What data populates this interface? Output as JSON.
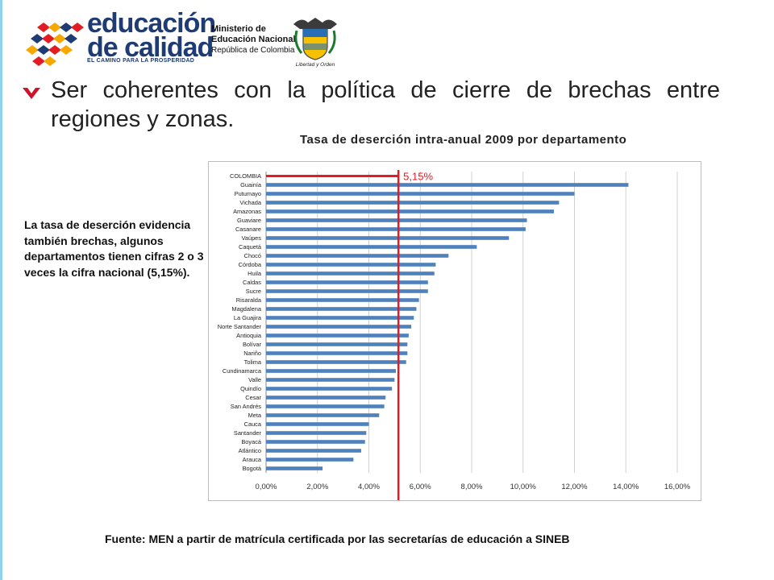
{
  "header": {
    "logo_title_line1": "educación",
    "logo_title_line2": "de calidad",
    "logo_tagline": "EL CAMINO PARA LA PROSPERIDAD",
    "ministry_line1": "Ministerio de",
    "ministry_line2": "Educación Nacional",
    "ministry_line3": "República de Colombia",
    "motto": "Libertad y Orden"
  },
  "headline": "Ser coherentes con la política de cierre de brechas entre regiones y zonas.",
  "side_note": "La tasa de deserción evidencia también brechas, algunos departamentos tienen cifras 2 o 3 veces la cifra nacional (5,15%).",
  "source": "Fuente: MEN a partir de matrícula certificada por las secretarías de educación a SINEB",
  "colors": {
    "bar": "#4f81bd",
    "reference": "#e31b23",
    "grid": "#d0d0d0",
    "brand_blue": "#1f3b73",
    "bullet_red": "#d0112b"
  },
  "chart_data": {
    "type": "bar",
    "orientation": "horizontal",
    "title": "Tasa de deserción intra-anual 2009 por departamento",
    "xlabel": "",
    "ylabel": "",
    "xlim": [
      0,
      16
    ],
    "x_ticks": [
      0,
      2,
      4,
      6,
      8,
      10,
      12,
      14,
      16
    ],
    "x_tick_labels": [
      "0,00%",
      "2,00%",
      "4,00%",
      "6,00%",
      "8,00%",
      "10,00%",
      "12,00%",
      "14,00%",
      "16,00%"
    ],
    "grid": true,
    "reference_line": {
      "value": 5.15,
      "label": "5,15%",
      "category": "COLOMBIA"
    },
    "categories": [
      "COLOMBIA",
      "Guainía",
      "Putumayo",
      "Vichada",
      "Amazonas",
      "Guaviare",
      "Casanare",
      "Vaúpes",
      "Caquetá",
      "Chocó",
      "Córdoba",
      "Huila",
      "Caldas",
      "Sucre",
      "Risaralda",
      "Magdalena",
      "La Guajira",
      "Norte Santander",
      "Antioquia",
      "Bolívar",
      "Nariño",
      "Tolima",
      "Cundinamarca",
      "Valle",
      "Quindío",
      "Cesar",
      "San Andrés",
      "Meta",
      "Cauca",
      "Santander",
      "Boyacá",
      "Atlántico",
      "Arauca",
      "Bogotá"
    ],
    "values": [
      5.15,
      14.1,
      12.0,
      11.4,
      11.2,
      10.15,
      10.1,
      9.45,
      8.2,
      7.1,
      6.6,
      6.55,
      6.3,
      6.3,
      5.95,
      5.85,
      5.75,
      5.65,
      5.55,
      5.5,
      5.5,
      5.45,
      5.05,
      5.0,
      4.9,
      4.65,
      4.6,
      4.4,
      4.0,
      3.9,
      3.85,
      3.7,
      3.4,
      2.2
    ]
  }
}
